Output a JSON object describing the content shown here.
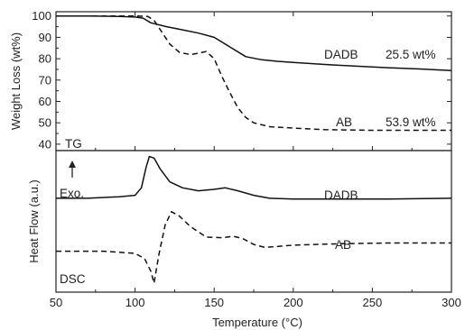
{
  "chart_data": [
    {
      "type": "line",
      "panel_label": "TG",
      "ylabel": "Weight Loss (wt%)",
      "xlim": [
        50,
        300
      ],
      "ylim": [
        37,
        102
      ],
      "yticks": [
        40,
        50,
        60,
        70,
        80,
        90,
        100
      ],
      "series": [
        {
          "name": "DADB",
          "style": "solid",
          "annotation": "25.5 wt%",
          "x": [
            50,
            70,
            90,
            100,
            105,
            110,
            120,
            130,
            140,
            150,
            160,
            170,
            180,
            190,
            200,
            220,
            240,
            260,
            280,
            300
          ],
          "y": [
            100,
            100,
            99.8,
            99.5,
            99,
            96.8,
            95,
            93.5,
            92,
            90,
            85.5,
            81,
            79.5,
            78.8,
            78.3,
            77.3,
            76.5,
            75.8,
            75.2,
            74.5
          ]
        },
        {
          "name": "AB",
          "style": "dashed",
          "annotation": "53.9 wt%",
          "x": [
            50,
            80,
            100,
            108,
            112,
            116,
            122,
            128,
            135,
            140,
            145,
            150,
            155,
            160,
            165,
            170,
            175,
            185,
            200,
            220,
            250,
            300
          ],
          "y": [
            100,
            100,
            100,
            99.8,
            98,
            93.5,
            86.8,
            83,
            81.9,
            82.6,
            83.4,
            80,
            71.5,
            64,
            57,
            52.5,
            50,
            48.2,
            47.5,
            46.8,
            46.5,
            46.5
          ]
        }
      ]
    },
    {
      "type": "line",
      "panel_label": "DSC",
      "ylabel": "Heat Flow (a.u.)",
      "xlabel": "Temperature (°C)",
      "xlim": [
        50,
        300
      ],
      "xticks": [
        50,
        100,
        150,
        200,
        250,
        300
      ],
      "arrow_label": "Exo.",
      "series": [
        {
          "name": "DADB",
          "style": "solid",
          "x": [
            50,
            70,
            90,
            100,
            104,
            107,
            109,
            112,
            116,
            122,
            130,
            140,
            150,
            157,
            165,
            175,
            185,
            200,
            230,
            260,
            300
          ],
          "y": [
            0.36,
            0.36,
            0.38,
            0.4,
            0.5,
            0.78,
            0.92,
            0.9,
            0.75,
            0.58,
            0.5,
            0.46,
            0.48,
            0.5,
            0.46,
            0.4,
            0.36,
            0.35,
            0.35,
            0.35,
            0.36
          ]
        },
        {
          "name": "AB",
          "style": "dashed",
          "x": [
            50,
            80,
            100,
            106,
            110,
            112,
            115,
            119,
            123,
            128,
            135,
            145,
            155,
            162,
            168,
            175,
            182,
            200,
            230,
            260,
            300
          ],
          "y": [
            -0.35,
            -0.35,
            -0.38,
            -0.45,
            -0.62,
            -0.78,
            -0.4,
            0.0,
            0.18,
            0.12,
            -0.02,
            -0.16,
            -0.17,
            -0.15,
            -0.18,
            -0.26,
            -0.3,
            -0.27,
            -0.25,
            -0.24,
            -0.24
          ]
        }
      ]
    }
  ]
}
